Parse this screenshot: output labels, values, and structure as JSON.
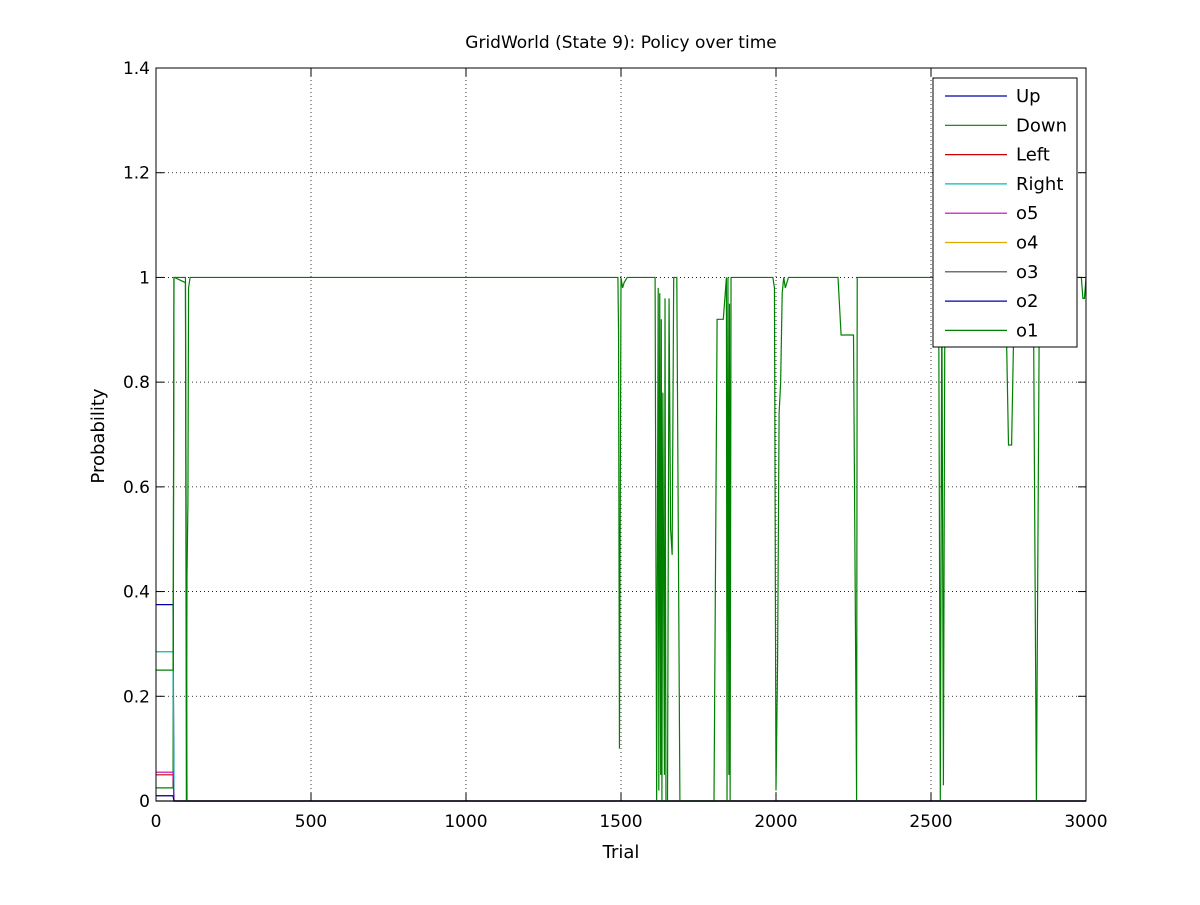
{
  "chart_data": {
    "type": "line",
    "title": "GridWorld (State 9): Policy over time",
    "xlabel": "Trial",
    "ylabel": "Probability",
    "xlim": [
      0,
      3000
    ],
    "ylim": [
      0,
      1.4
    ],
    "xticks": [
      0,
      500,
      1000,
      1500,
      2000,
      2500,
      3000
    ],
    "yticks": [
      0,
      0.2,
      0.4,
      0.6,
      0.8,
      1,
      1.2,
      1.4
    ],
    "xtick_labels": [
      "0",
      "500",
      "1000",
      "1500",
      "2000",
      "2500",
      "3000"
    ],
    "ytick_labels": [
      "0",
      "0.2",
      "0.4",
      "0.6",
      "0.8",
      "1",
      "1.2",
      "1.4"
    ],
    "grid": true,
    "legend_position": "top-right",
    "series": [
      {
        "name": "Up",
        "color": "#0000aa",
        "x": [
          0,
          55,
          58,
          3000
        ],
        "y": [
          0.375,
          0.375,
          0.0,
          0.0
        ]
      },
      {
        "name": "Down",
        "color": "#008000",
        "x": [
          0,
          55,
          58,
          60,
          95,
          100,
          105,
          110,
          115,
          3000
        ],
        "y": [
          0.025,
          0.025,
          1.0,
          1.0,
          0.99,
          0.0,
          0.0,
          0.0,
          0.0,
          0.0
        ]
      },
      {
        "name": "Left",
        "color": "#cc0000",
        "x": [
          0,
          55,
          58,
          3000
        ],
        "y": [
          0.05,
          0.05,
          0.0,
          0.0
        ]
      },
      {
        "name": "Right",
        "color": "#00bbbb",
        "x": [
          0,
          55,
          58,
          3000
        ],
        "y": [
          0.285,
          0.285,
          0.0,
          0.0
        ]
      },
      {
        "name": "o5",
        "color": "#bb00bb",
        "x": [
          0,
          55,
          58,
          3000
        ],
        "y": [
          0.055,
          0.055,
          0.0,
          0.0
        ]
      },
      {
        "name": "o4",
        "color": "#ddaa00",
        "x": [
          0,
          55,
          58,
          3000
        ],
        "y": [
          0.01,
          0.01,
          0.0,
          0.0
        ]
      },
      {
        "name": "o3",
        "color": "#444444",
        "x": [
          0,
          55,
          58,
          3000
        ],
        "y": [
          0.0,
          0.0,
          0.0,
          0.0
        ]
      },
      {
        "name": "o2",
        "color": "#0000aa",
        "x": [
          0,
          55,
          58,
          3000
        ],
        "y": [
          0.01,
          0.01,
          0.0,
          0.0
        ]
      },
      {
        "name": "o1",
        "color": "#008000",
        "x": [
          0,
          55,
          58,
          95,
          98,
          100,
          103,
          105,
          110,
          1490,
          1492,
          1495,
          1500,
          1505,
          1510,
          1520,
          1540,
          1610,
          1615,
          1620,
          1622,
          1625,
          1628,
          1630,
          1632,
          1635,
          1640,
          1642,
          1645,
          1650,
          1655,
          1660,
          1665,
          1670,
          1680,
          1690,
          1700,
          1720,
          1800,
          1810,
          1830,
          1840,
          1842,
          1845,
          1848,
          1850,
          1852,
          1855,
          1860,
          1870,
          1990,
          1995,
          2000,
          2005,
          2010,
          2015,
          2020,
          2025,
          2030,
          2040,
          2050,
          2060,
          2070,
          2200,
          2210,
          2220,
          2250,
          2260,
          2262,
          2520,
          2525,
          2530,
          2535,
          2540,
          2545,
          2560,
          2575,
          2585,
          2595,
          2600,
          2740,
          2750,
          2760,
          2770,
          2780,
          2830,
          2840,
          2850,
          2985,
          2990,
          2995,
          3000
        ],
        "y": [
          0.25,
          0.25,
          1.0,
          1.0,
          0.0,
          0.43,
          0.57,
          0.98,
          1.0,
          1.0,
          0.9,
          0.1,
          1.0,
          0.98,
          0.99,
          1.0,
          1.0,
          1.0,
          0.0,
          0.98,
          0.02,
          0.97,
          0.05,
          0.92,
          0.0,
          0.78,
          0.05,
          0.96,
          0.0,
          0.0,
          0.96,
          0.52,
          0.47,
          1.0,
          1.0,
          0.0,
          0.0,
          0.0,
          0.0,
          0.92,
          0.92,
          1.0,
          0.0,
          1.0,
          0.05,
          0.95,
          0.0,
          1.0,
          1.0,
          1.0,
          1.0,
          0.98,
          0.02,
          0.26,
          0.74,
          0.8,
          0.97,
          1.0,
          0.98,
          1.0,
          1.0,
          1.0,
          1.0,
          1.0,
          0.89,
          0.89,
          0.89,
          0.0,
          1.0,
          1.0,
          0.92,
          0.0,
          0.97,
          0.03,
          1.0,
          1.0,
          0.88,
          0.88,
          1.0,
          1.0,
          1.0,
          0.68,
          0.68,
          1.0,
          1.0,
          1.0,
          0.0,
          1.0,
          1.0,
          0.96,
          0.96,
          1.0
        ]
      }
    ]
  }
}
